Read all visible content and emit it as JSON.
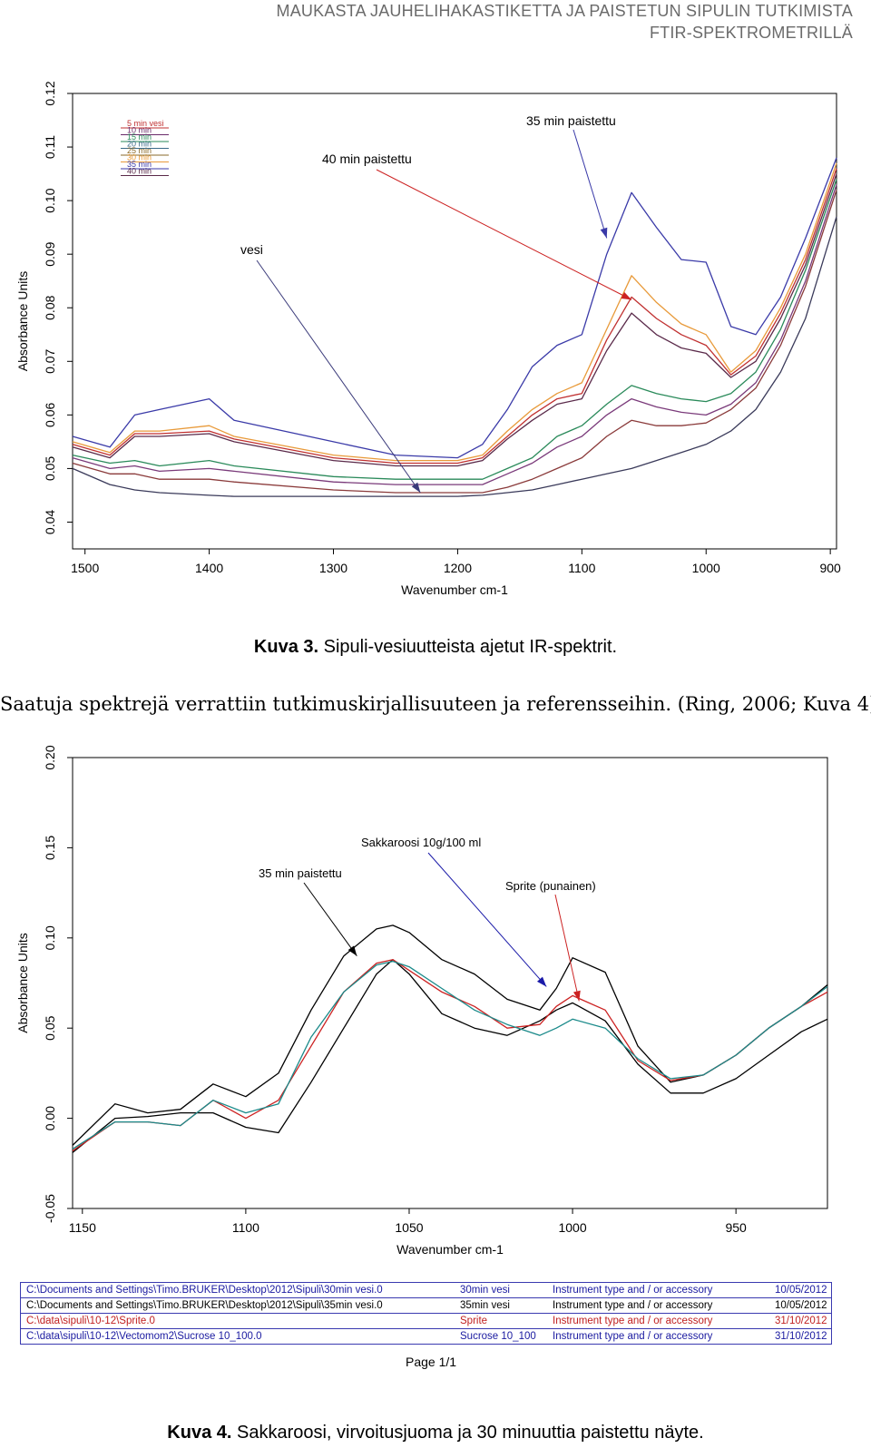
{
  "header": {
    "line1": "MAUKASTA JAUHELIHAKASTIKETTA JA PAISTETUN SIPULIN TUTKIMISTA",
    "line2": "FTIR-SPEKTROMETRILLÄ"
  },
  "figure3": {
    "caption_label": "Kuva 3.",
    "caption_text": " Sipuli-vesiuutteista ajetut IR-spektrit."
  },
  "paragraph": "Saatuja spektrejä verrattiin tutkimuskirjallisuuteen ja referensseihin. (Ring, 2006; Kuva 4)",
  "figure4": {
    "caption_label": "Kuva 4.",
    "caption_text": " Sakkaroosi, virvoitusjuoma ja 30 minuuttia paistettu näyte.",
    "file_table": [
      [
        "C:\\Documents and Settings\\Timo.BRUKER\\Desktop\\2012\\Sipuli\\30min vesi.0",
        "30min vesi",
        "Instrument type and / or accessory",
        "10/05/2012"
      ],
      [
        "C:\\Documents and Settings\\Timo.BRUKER\\Desktop\\2012\\Sipuli\\35min vesi.0",
        "35min vesi",
        "Instrument type and / or accessory",
        "10/05/2012"
      ],
      [
        "C:\\data\\sipuli\\10-12\\Sprite.0",
        "Sprite",
        "Instrument type and / or accessory",
        "31/10/2012"
      ],
      [
        "C:\\data\\sipuli\\10-12\\Vectomom2\\Sucrose 10_100.0",
        "Sucrose 10_100",
        "Instrument type and / or accessory",
        "31/10/2012"
      ]
    ],
    "page_label": "Page 1/1"
  },
  "chart_data": [
    {
      "type": "line",
      "xlabel": "Wavenumber cm-1",
      "ylabel": "Absorbance Units",
      "xlim": [
        1510,
        895
      ],
      "ylim": [
        0.035,
        0.12
      ],
      "x_ticks": [
        1500,
        1400,
        1300,
        1200,
        1100,
        1000,
        900
      ],
      "y_ticks": [
        0.04,
        0.05,
        0.06,
        0.07,
        0.08,
        0.09,
        0.1,
        0.11,
        0.12
      ],
      "x_tick_labels": [
        "1500",
        "1400",
        "1300",
        "1200",
        "1100",
        "1000",
        "900"
      ],
      "y_tick_labels": [
        "0.04",
        "0.05",
        "0.06",
        "0.07",
        "0.08",
        "0.09",
        "0.10",
        "0.11",
        "0.12"
      ],
      "legend": [
        {
          "name": "5 min vesi",
          "color": "#c03030"
        },
        {
          "name": "10 min",
          "color": "#6a2a6a"
        },
        {
          "name": "15 min",
          "color": "#2a8a5a"
        },
        {
          "name": "20 min",
          "color": "#3a6a8a"
        },
        {
          "name": "25 min",
          "color": "#8a6a2a"
        },
        {
          "name": "30 min",
          "color": "#e89a3a"
        },
        {
          "name": "35 min",
          "color": "#3a3aa8"
        },
        {
          "name": "40 min",
          "color": "#5a2a4a"
        }
      ],
      "annotations": [
        {
          "text": "35 min paistettu",
          "target": [
            1080,
            0.093
          ]
        },
        {
          "text": "40 min paistettu",
          "target": [
            1060,
            0.0815
          ]
        },
        {
          "text": "vesi",
          "target": [
            1230,
            0.0455
          ]
        }
      ],
      "x": [
        1510,
        1480,
        1460,
        1440,
        1400,
        1380,
        1300,
        1250,
        1200,
        1180,
        1160,
        1140,
        1120,
        1100,
        1080,
        1060,
        1040,
        1020,
        1000,
        980,
        960,
        940,
        920,
        895
      ],
      "series": [
        {
          "color": "#3a3aa8",
          "values": [
            0.056,
            0.054,
            0.06,
            0.061,
            0.063,
            0.059,
            0.055,
            0.0525,
            0.052,
            0.0545,
            0.061,
            0.069,
            0.073,
            0.075,
            0.09,
            0.1015,
            0.095,
            0.089,
            0.0885,
            0.0765,
            0.075,
            0.082,
            0.093,
            0.108
          ]
        },
        {
          "color": "#e89a3a",
          "values": [
            0.055,
            0.053,
            0.057,
            0.057,
            0.058,
            0.056,
            0.0525,
            0.0515,
            0.0515,
            0.0525,
            0.057,
            0.061,
            0.064,
            0.066,
            0.076,
            0.086,
            0.081,
            0.077,
            0.075,
            0.068,
            0.072,
            0.08,
            0.09,
            0.107
          ]
        },
        {
          "color": "#c03030",
          "values": [
            0.0545,
            0.0525,
            0.0565,
            0.0565,
            0.057,
            0.0555,
            0.052,
            0.051,
            0.051,
            0.052,
            0.056,
            0.06,
            0.063,
            0.064,
            0.074,
            0.082,
            0.078,
            0.075,
            0.073,
            0.0675,
            0.071,
            0.079,
            0.089,
            0.106
          ]
        },
        {
          "color": "#5a2a4a",
          "values": [
            0.054,
            0.052,
            0.056,
            0.056,
            0.0565,
            0.055,
            0.0515,
            0.0505,
            0.0505,
            0.0515,
            0.0555,
            0.059,
            0.062,
            0.063,
            0.072,
            0.079,
            0.075,
            0.0725,
            0.0715,
            0.067,
            0.07,
            0.078,
            0.088,
            0.105
          ]
        },
        {
          "color": "#2a8a5a",
          "values": [
            0.0525,
            0.051,
            0.0515,
            0.0505,
            0.0515,
            0.0505,
            0.0485,
            0.048,
            0.048,
            0.048,
            0.05,
            0.052,
            0.056,
            0.058,
            0.062,
            0.0655,
            0.064,
            0.063,
            0.0625,
            0.064,
            0.068,
            0.076,
            0.087,
            0.104
          ]
        },
        {
          "color": "#7a3a7a",
          "values": [
            0.052,
            0.05,
            0.0505,
            0.0495,
            0.05,
            0.0495,
            0.0475,
            0.047,
            0.047,
            0.047,
            0.049,
            0.051,
            0.054,
            0.056,
            0.06,
            0.063,
            0.0615,
            0.0605,
            0.06,
            0.062,
            0.066,
            0.074,
            0.085,
            0.103
          ]
        },
        {
          "color": "#8a3a3a",
          "values": [
            0.051,
            0.049,
            0.049,
            0.048,
            0.048,
            0.0475,
            0.046,
            0.0455,
            0.0455,
            0.0455,
            0.0465,
            0.048,
            0.05,
            0.052,
            0.056,
            0.059,
            0.058,
            0.058,
            0.0585,
            0.061,
            0.065,
            0.073,
            0.084,
            0.102
          ]
        },
        {
          "color": "#3a3a5a",
          "values": [
            0.05,
            0.047,
            0.046,
            0.0455,
            0.045,
            0.0448,
            0.0448,
            0.0448,
            0.0448,
            0.045,
            0.0455,
            0.046,
            0.047,
            0.048,
            0.049,
            0.05,
            0.0515,
            0.053,
            0.0545,
            0.057,
            0.061,
            0.068,
            0.078,
            0.097
          ]
        }
      ]
    },
    {
      "type": "line",
      "xlabel": "Wavenumber cm-1",
      "ylabel": "Absorbance Units",
      "xlim": [
        1153,
        922
      ],
      "ylim": [
        -0.05,
        0.2
      ],
      "x_ticks": [
        1150,
        1100,
        1050,
        1000,
        950
      ],
      "y_ticks": [
        -0.05,
        0.0,
        0.05,
        0.1,
        0.15,
        0.2
      ],
      "x_tick_labels": [
        "1150",
        "1100",
        "1050",
        "1000",
        "950"
      ],
      "y_tick_labels": [
        "-0.05",
        "0.00",
        "0.05",
        "0.10",
        "0.15",
        "0.20"
      ],
      "annotations": [
        {
          "text": "Sakkaroosi 10g/100 ml",
          "target": [
            1008,
            0.073
          ]
        },
        {
          "text": "35 min paistettu",
          "target": [
            1066,
            0.09
          ]
        },
        {
          "text": "Sprite (punainen)",
          "target": [
            998,
            0.065
          ]
        }
      ],
      "x": [
        1153,
        1140,
        1130,
        1120,
        1110,
        1100,
        1090,
        1080,
        1070,
        1060,
        1055,
        1050,
        1040,
        1030,
        1020,
        1010,
        1005,
        1000,
        990,
        980,
        970,
        960,
        950,
        940,
        930,
        922
      ],
      "series": [
        {
          "color": "#000000",
          "values": [
            -0.015,
            0.008,
            0.003,
            0.005,
            0.019,
            0.012,
            0.025,
            0.06,
            0.09,
            0.105,
            0.107,
            0.103,
            0.088,
            0.08,
            0.066,
            0.06,
            0.072,
            0.089,
            0.081,
            0.04,
            0.02,
            0.024,
            0.035,
            0.05,
            0.062,
            0.074
          ]
        },
        {
          "color": "#000000",
          "values": [
            -0.019,
            0.0,
            0.001,
            0.003,
            0.003,
            -0.005,
            -0.008,
            0.02,
            0.05,
            0.08,
            0.088,
            0.08,
            0.058,
            0.05,
            0.046,
            0.054,
            0.06,
            0.064,
            0.054,
            0.03,
            0.014,
            0.014,
            0.022,
            0.035,
            0.048,
            0.055
          ]
        },
        {
          "color": "#cc2222",
          "values": [
            -0.018,
            -0.002,
            -0.002,
            -0.004,
            0.01,
            0.0,
            0.01,
            0.04,
            0.07,
            0.086,
            0.088,
            0.082,
            0.07,
            0.062,
            0.05,
            0.052,
            0.062,
            0.068,
            0.06,
            0.032,
            0.021,
            0.024,
            0.035,
            0.05,
            0.062,
            0.07
          ]
        },
        {
          "color": "#1a8a8a",
          "values": [
            -0.017,
            -0.002,
            -0.002,
            -0.004,
            0.01,
            0.003,
            0.008,
            0.045,
            0.07,
            0.085,
            0.087,
            0.084,
            0.072,
            0.06,
            0.052,
            0.046,
            0.05,
            0.055,
            0.05,
            0.033,
            0.022,
            0.024,
            0.035,
            0.05,
            0.062,
            0.073
          ]
        }
      ]
    }
  ]
}
